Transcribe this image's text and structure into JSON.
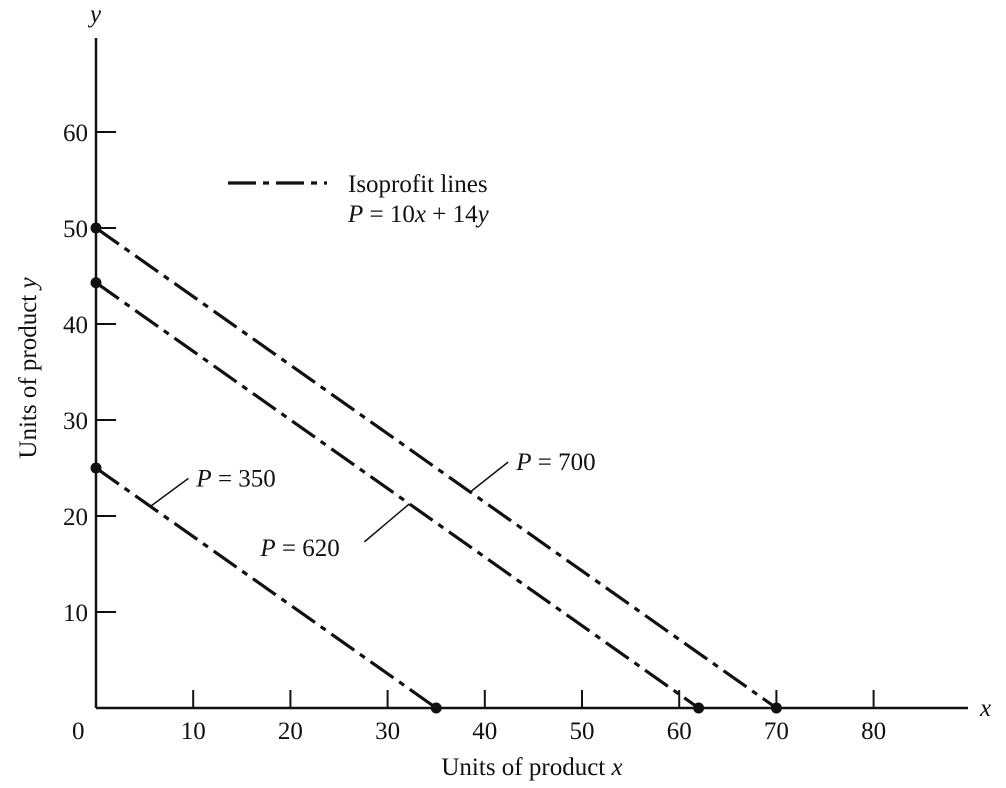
{
  "chart_data": {
    "type": "line",
    "xlabel": "Units of product x",
    "ylabel": "Units of product y",
    "x_axis_symbol": "x",
    "y_axis_symbol": "y",
    "origin_label": "0",
    "xlim": [
      0,
      90
    ],
    "ylim": [
      0,
      70
    ],
    "x_ticks": [
      10,
      20,
      30,
      40,
      50,
      60,
      70,
      80
    ],
    "y_ticks": [
      10,
      20,
      30,
      40,
      50,
      60
    ],
    "grid": false,
    "legend": {
      "placement": "top-left",
      "line_style": "dash-dot",
      "title": "Isoprofit lines",
      "equation": "P = 10x + 14y"
    },
    "series": [
      {
        "name": "P = 350",
        "line_style": "dash-dot",
        "x": [
          0,
          35
        ],
        "y": [
          25,
          0
        ]
      },
      {
        "name": "P = 620",
        "line_style": "dash-dot",
        "x": [
          0,
          62
        ],
        "y": [
          44.3,
          0
        ]
      },
      {
        "name": "P = 700",
        "line_style": "dash-dot",
        "x": [
          0,
          70
        ],
        "y": [
          50,
          0
        ]
      }
    ],
    "color": "#111111"
  }
}
